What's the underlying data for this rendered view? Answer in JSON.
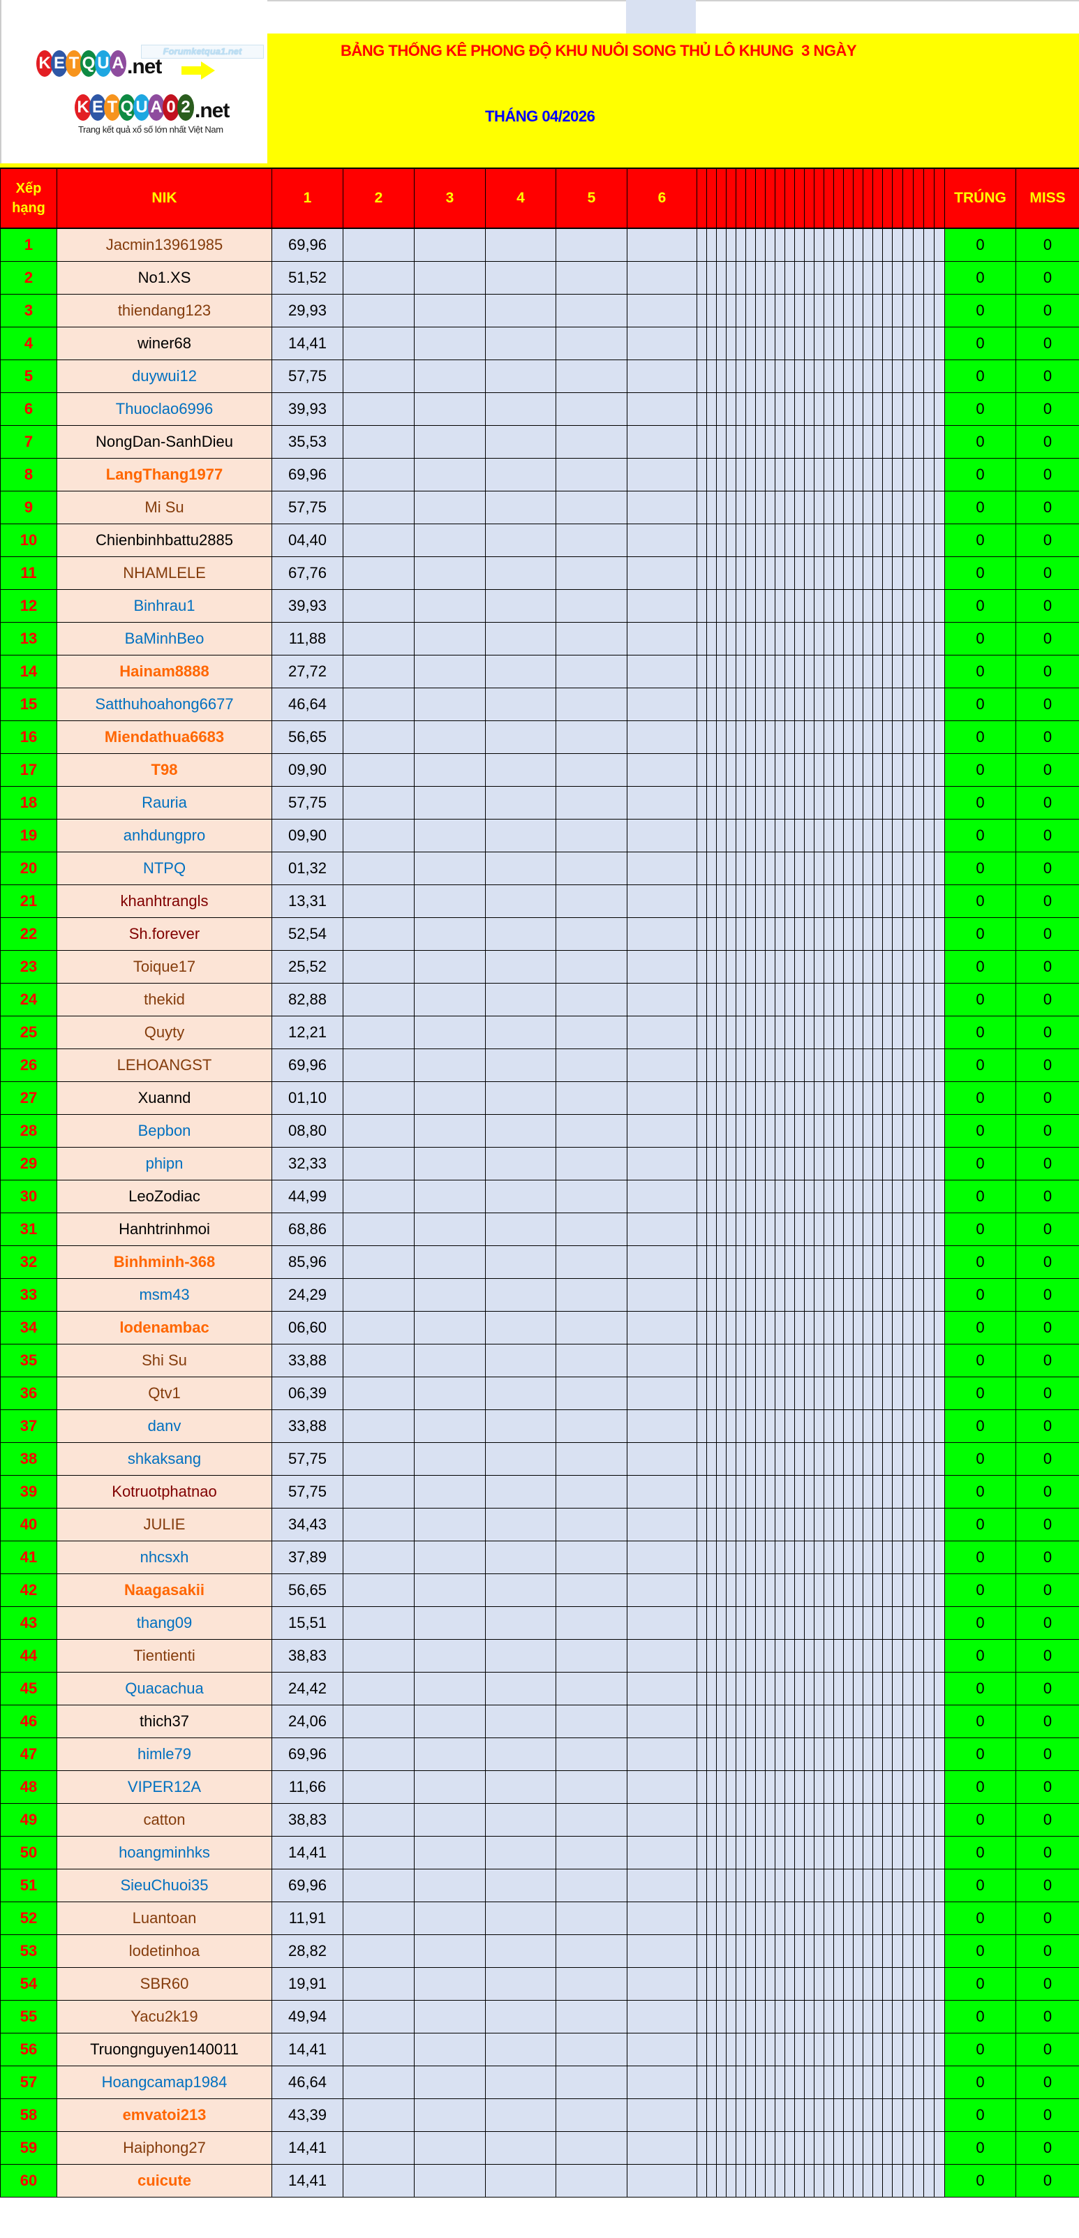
{
  "header": {
    "title": "BẢNG THỐNG KÊ PHONG ĐỘ KHU NUÔI SONG THỦ LÔ KHUNG  3 NGÀY",
    "month": "THÁNG 04/2026"
  },
  "logo": {
    "brand1_letters": [
      "K",
      "E",
      "T",
      "Q",
      "U",
      "A"
    ],
    "brand1_suffix": ".net",
    "forum_badge": "Forumketqua1.net",
    "brand2_letters": [
      "K",
      "E",
      "T",
      "Q",
      "U",
      "A",
      "0",
      "2"
    ],
    "brand2_suffix": ".net",
    "tagline": "Trang kết quả xổ số lớn nhất Việt Nam",
    "circle_colors": [
      "#E31E24",
      "#2E57A6",
      "#F7941D",
      "#0E8A43",
      "#1EA7E1",
      "#8E4C9E",
      "#C1121F",
      "#2A5D1E"
    ]
  },
  "table": {
    "columns": {
      "rank": "Xếp hạng",
      "nik": "NIK",
      "days": [
        "1",
        "2",
        "3",
        "4",
        "5",
        "6"
      ],
      "hit": "TRÚNG",
      "miss": "MISS"
    },
    "colors": {
      "header_bg": "#FF0000",
      "header_text": "#FFFF00",
      "rank_bg": "#00FF00",
      "rank_text": "#FF0000",
      "nik_bg": "#FCE4D6",
      "value_bg": "#D9E1F2",
      "result_bg": "#00FF00",
      "name_palette": {
        "brown": "#843C0C",
        "black": "#000000",
        "blue": "#0070C0",
        "orange": "#FF6600",
        "darkred": "#800000"
      }
    },
    "rows": [
      {
        "rank": "1",
        "nik": "Jacmin13961985",
        "color": "brown",
        "d1": "69,96",
        "hit": "0",
        "miss": "0"
      },
      {
        "rank": "2",
        "nik": "No1.XS",
        "color": "black",
        "d1": "51,52",
        "hit": "0",
        "miss": "0"
      },
      {
        "rank": "3",
        "nik": "thiendang123",
        "color": "brown",
        "d1": "29,93",
        "hit": "0",
        "miss": "0"
      },
      {
        "rank": "4",
        "nik": "winer68",
        "color": "black",
        "d1": "14,41",
        "hit": "0",
        "miss": "0"
      },
      {
        "rank": "5",
        "nik": "duywui12",
        "color": "blue",
        "d1": "57,75",
        "hit": "0",
        "miss": "0"
      },
      {
        "rank": "6",
        "nik": "Thuoclao6996",
        "color": "blue",
        "d1": "39,93",
        "hit": "0",
        "miss": "0"
      },
      {
        "rank": "7",
        "nik": "NongDan-SanhDieu",
        "color": "black",
        "d1": "35,53",
        "hit": "0",
        "miss": "0"
      },
      {
        "rank": "8",
        "nik": "LangThang1977",
        "color": "orange",
        "d1": "69,96",
        "hit": "0",
        "miss": "0"
      },
      {
        "rank": "9",
        "nik": "Mi Su",
        "color": "brown",
        "d1": "57,75",
        "hit": "0",
        "miss": "0"
      },
      {
        "rank": "10",
        "nik": "Chienbinhbattu2885",
        "color": "black",
        "d1": "04,40",
        "hit": "0",
        "miss": "0"
      },
      {
        "rank": "11",
        "nik": "NHAMLELE",
        "color": "brown",
        "d1": "67,76",
        "hit": "0",
        "miss": "0"
      },
      {
        "rank": "12",
        "nik": "Binhrau1",
        "color": "blue",
        "d1": "39,93",
        "hit": "0",
        "miss": "0"
      },
      {
        "rank": "13",
        "nik": "BaMinhBeo",
        "color": "blue",
        "d1": "11,88",
        "hit": "0",
        "miss": "0"
      },
      {
        "rank": "14",
        "nik": "Hainam8888",
        "color": "orange",
        "d1": "27,72",
        "hit": "0",
        "miss": "0"
      },
      {
        "rank": "15",
        "nik": "Satthuhoahong6677",
        "color": "blue",
        "d1": "46,64",
        "hit": "0",
        "miss": "0"
      },
      {
        "rank": "16",
        "nik": "Miendathua6683",
        "color": "orange",
        "d1": "56,65",
        "hit": "0",
        "miss": "0"
      },
      {
        "rank": "17",
        "nik": "T98",
        "color": "orange",
        "d1": "09,90",
        "hit": "0",
        "miss": "0"
      },
      {
        "rank": "18",
        "nik": "Rauria",
        "color": "blue",
        "d1": "57,75",
        "hit": "0",
        "miss": "0"
      },
      {
        "rank": "19",
        "nik": "anhdungpro",
        "color": "blue",
        "d1": "09,90",
        "hit": "0",
        "miss": "0"
      },
      {
        "rank": "20",
        "nik": "NTPQ",
        "color": "blue",
        "d1": "01,32",
        "hit": "0",
        "miss": "0"
      },
      {
        "rank": "21",
        "nik": "khanhtrangls",
        "color": "darkred",
        "d1": "13,31",
        "hit": "0",
        "miss": "0"
      },
      {
        "rank": "22",
        "nik": "Sh.forever",
        "color": "darkred",
        "d1": "52,54",
        "hit": "0",
        "miss": "0"
      },
      {
        "rank": "23",
        "nik": "Toique17",
        "color": "brown",
        "d1": "25,52",
        "hit": "0",
        "miss": "0"
      },
      {
        "rank": "24",
        "nik": "thekid",
        "color": "brown",
        "d1": "82,88",
        "hit": "0",
        "miss": "0"
      },
      {
        "rank": "25",
        "nik": "Quyty",
        "color": "brown",
        "d1": "12,21",
        "hit": "0",
        "miss": "0"
      },
      {
        "rank": "26",
        "nik": "LEHOANGST",
        "color": "brown",
        "d1": "69,96",
        "hit": "0",
        "miss": "0"
      },
      {
        "rank": "27",
        "nik": "Xuannd",
        "color": "black",
        "d1": "01,10",
        "hit": "0",
        "miss": "0"
      },
      {
        "rank": "28",
        "nik": "Bepbon",
        "color": "blue",
        "d1": "08,80",
        "hit": "0",
        "miss": "0"
      },
      {
        "rank": "29",
        "nik": "phipn",
        "color": "blue",
        "d1": "32,33",
        "hit": "0",
        "miss": "0"
      },
      {
        "rank": "30",
        "nik": "LeoZodiac",
        "color": "black",
        "d1": "44,99",
        "hit": "0",
        "miss": "0"
      },
      {
        "rank": "31",
        "nik": "Hanhtrinhmoi",
        "color": "black",
        "d1": "68,86",
        "hit": "0",
        "miss": "0"
      },
      {
        "rank": "32",
        "nik": "Binhminh-368",
        "color": "orange",
        "d1": "85,96",
        "hit": "0",
        "miss": "0"
      },
      {
        "rank": "33",
        "nik": "msm43",
        "color": "blue",
        "d1": "24,29",
        "hit": "0",
        "miss": "0"
      },
      {
        "rank": "34",
        "nik": "lodenambac",
        "color": "orange",
        "d1": "06,60",
        "hit": "0",
        "miss": "0"
      },
      {
        "rank": "35",
        "nik": "Shi Su",
        "color": "brown",
        "d1": "33,88",
        "hit": "0",
        "miss": "0"
      },
      {
        "rank": "36",
        "nik": "Qtv1",
        "color": "brown",
        "d1": "06,39",
        "hit": "0",
        "miss": "0"
      },
      {
        "rank": "37",
        "nik": "danv",
        "color": "blue",
        "d1": "33,88",
        "hit": "0",
        "miss": "0"
      },
      {
        "rank": "38",
        "nik": "shkaksang",
        "color": "blue",
        "d1": "57,75",
        "hit": "0",
        "miss": "0"
      },
      {
        "rank": "39",
        "nik": "Kotruotphatnao",
        "color": "darkred",
        "d1": "57,75",
        "hit": "0",
        "miss": "0"
      },
      {
        "rank": "40",
        "nik": "JULIE",
        "color": "brown",
        "d1": "34,43",
        "hit": "0",
        "miss": "0"
      },
      {
        "rank": "41",
        "nik": "nhcsxh",
        "color": "blue",
        "d1": "37,89",
        "hit": "0",
        "miss": "0"
      },
      {
        "rank": "42",
        "nik": "Naagasakii",
        "color": "orange",
        "d1": "56,65",
        "hit": "0",
        "miss": "0"
      },
      {
        "rank": "43",
        "nik": "thang09",
        "color": "blue",
        "d1": "15,51",
        "hit": "0",
        "miss": "0"
      },
      {
        "rank": "44",
        "nik": "Tientienti",
        "color": "brown",
        "d1": "38,83",
        "hit": "0",
        "miss": "0"
      },
      {
        "rank": "45",
        "nik": "Quacachua",
        "color": "blue",
        "d1": "24,42",
        "hit": "0",
        "miss": "0"
      },
      {
        "rank": "46",
        "nik": "thich37",
        "color": "black",
        "d1": "24,06",
        "hit": "0",
        "miss": "0"
      },
      {
        "rank": "47",
        "nik": "himle79",
        "color": "blue",
        "d1": "69,96",
        "hit": "0",
        "miss": "0"
      },
      {
        "rank": "48",
        "nik": "VIPER12A",
        "color": "blue",
        "d1": "11,66",
        "hit": "0",
        "miss": "0"
      },
      {
        "rank": "49",
        "nik": "catton",
        "color": "brown",
        "d1": "38,83",
        "hit": "0",
        "miss": "0"
      },
      {
        "rank": "50",
        "nik": "hoangminhks",
        "color": "blue",
        "d1": "14,41",
        "hit": "0",
        "miss": "0"
      },
      {
        "rank": "51",
        "nik": "SieuChuoi35",
        "color": "blue",
        "d1": "69,96",
        "hit": "0",
        "miss": "0"
      },
      {
        "rank": "52",
        "nik": "Luantoan",
        "color": "brown",
        "d1": "11,91",
        "hit": "0",
        "miss": "0"
      },
      {
        "rank": "53",
        "nik": "lodetinhoa",
        "color": "brown",
        "d1": "28,82",
        "hit": "0",
        "miss": "0"
      },
      {
        "rank": "54",
        "nik": "SBR60",
        "color": "brown",
        "d1": "19,91",
        "hit": "0",
        "miss": "0"
      },
      {
        "rank": "55",
        "nik": "Yacu2k19",
        "color": "brown",
        "d1": "49,94",
        "hit": "0",
        "miss": "0"
      },
      {
        "rank": "56",
        "nik": "Truongnguyen140011",
        "color": "black",
        "d1": "14,41",
        "hit": "0",
        "miss": "0"
      },
      {
        "rank": "57",
        "nik": "Hoangcamap1984",
        "color": "blue",
        "d1": "46,64",
        "hit": "0",
        "miss": "0"
      },
      {
        "rank": "58",
        "nik": "emvatoi213",
        "color": "orange",
        "d1": "43,39",
        "hit": "0",
        "miss": "0"
      },
      {
        "rank": "59",
        "nik": "Haiphong27",
        "color": "brown",
        "d1": "14,41",
        "hit": "0",
        "miss": "0"
      },
      {
        "rank": "60",
        "nik": "cuicute",
        "color": "orange",
        "d1": "14,41",
        "hit": "0",
        "miss": "0"
      }
    ]
  }
}
